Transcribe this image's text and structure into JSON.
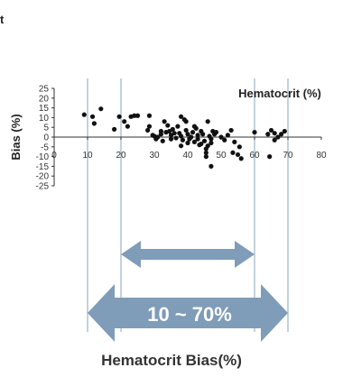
{
  "stray_text": "t",
  "caption": "Hematocrit Bias(%)",
  "range_label": "10 ~ 70%",
  "colors": {
    "arrow": "#7f9cb8",
    "guide": "#9bb3c9",
    "point": "#111111",
    "axis": "#333333"
  },
  "chart_data": {
    "type": "scatter",
    "title": "",
    "xlabel": "Hematocrit (%)",
    "ylabel": "Bias (%)",
    "xlim": [
      0,
      80
    ],
    "ylim": [
      -25,
      25
    ],
    "xticks": [
      0,
      10,
      20,
      30,
      40,
      50,
      60,
      70,
      80
    ],
    "yticks": [
      25,
      20,
      15,
      10,
      5,
      0,
      -5,
      -10,
      -15,
      -20,
      -25
    ],
    "grid": false,
    "guide_lines_x": [
      10,
      20,
      60,
      70
    ],
    "inner_range": [
      20,
      60
    ],
    "outer_range": [
      10,
      70
    ],
    "points": [
      [
        9,
        11.5
      ],
      [
        11.5,
        10.5
      ],
      [
        14,
        14.5
      ],
      [
        12,
        7
      ],
      [
        18,
        4
      ],
      [
        19.5,
        10.5
      ],
      [
        21,
        8
      ],
      [
        22,
        5.5
      ],
      [
        23,
        10.5
      ],
      [
        24,
        11
      ],
      [
        25,
        11
      ],
      [
        28.5,
        11
      ],
      [
        28,
        3.5
      ],
      [
        28.5,
        5.5
      ],
      [
        29.5,
        1
      ],
      [
        30,
        0.5
      ],
      [
        30.5,
        -1
      ],
      [
        31,
        0
      ],
      [
        32,
        3
      ],
      [
        32,
        1.5
      ],
      [
        32.5,
        -2
      ],
      [
        33,
        8
      ],
      [
        33.5,
        2.5
      ],
      [
        34,
        6
      ],
      [
        34.5,
        3
      ],
      [
        35,
        1
      ],
      [
        35,
        -1
      ],
      [
        35.5,
        4
      ],
      [
        36,
        2
      ],
      [
        36.5,
        -0.5
      ],
      [
        37,
        5.5
      ],
      [
        37.5,
        2
      ],
      [
        38,
        0.5
      ],
      [
        38.5,
        -1.5
      ],
      [
        38,
        10.5
      ],
      [
        38,
        -4.5
      ],
      [
        39,
        9
      ],
      [
        39.5,
        8
      ],
      [
        39.5,
        3.5
      ],
      [
        40,
        1.5
      ],
      [
        40,
        -3
      ],
      [
        40.5,
        -1
      ],
      [
        41,
        0
      ],
      [
        41.5,
        2.5
      ],
      [
        42,
        5.5
      ],
      [
        42,
        -2.5
      ],
      [
        42.5,
        4.5
      ],
      [
        43,
        1
      ],
      [
        43,
        -1
      ],
      [
        43.5,
        -4
      ],
      [
        44,
        3
      ],
      [
        44,
        -3.5
      ],
      [
        44.5,
        1.5
      ],
      [
        45,
        -2
      ],
      [
        45.5,
        -6
      ],
      [
        45.5,
        -8
      ],
      [
        45.5,
        -10
      ],
      [
        46,
        -4.5
      ],
      [
        46,
        8
      ],
      [
        46.5,
        0.5
      ],
      [
        47,
        -1
      ],
      [
        47,
        -3
      ],
      [
        47.5,
        3
      ],
      [
        48,
        1.5
      ],
      [
        47,
        -15
      ],
      [
        48.5,
        2.5
      ],
      [
        50,
        0
      ],
      [
        51,
        -1.5
      ],
      [
        52,
        1
      ],
      [
        53,
        3.5
      ],
      [
        54,
        -2.5
      ],
      [
        53.5,
        -8
      ],
      [
        55,
        -9
      ],
      [
        56,
        -11
      ],
      [
        55.5,
        -5
      ],
      [
        60,
        2.5
      ],
      [
        64,
        1.5
      ],
      [
        64.5,
        -10
      ],
      [
        65,
        3.5
      ],
      [
        66,
        2
      ],
      [
        67,
        0
      ],
      [
        68,
        1.5
      ],
      [
        69,
        3
      ],
      [
        66,
        -1.5
      ]
    ]
  }
}
